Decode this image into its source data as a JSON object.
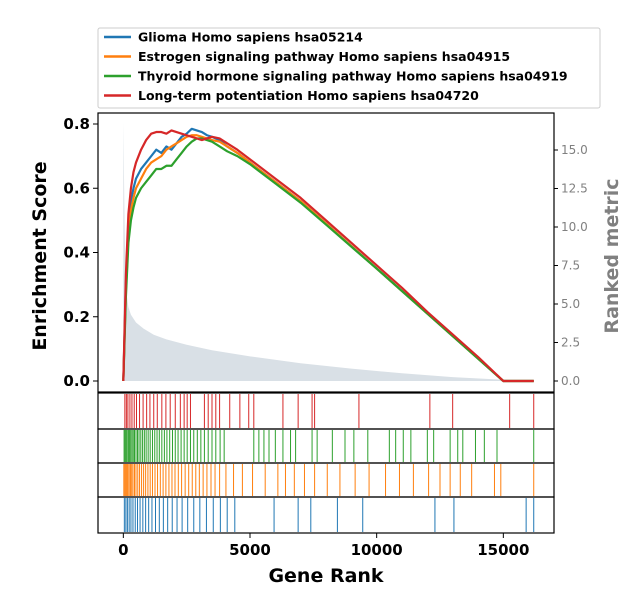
{
  "chart_data": {
    "type": "line",
    "xlabel": "Gene Rank",
    "ylabel": "Enrichment Score",
    "ylabel_right": "Ranked metric",
    "xlim": [
      -1000,
      17000
    ],
    "ylim": [
      0,
      0.82
    ],
    "ylim_right": [
      0,
      17
    ],
    "x_ticks": [
      0,
      5000,
      10000,
      15000
    ],
    "x_tick_labels": [
      "0",
      "5000",
      "10000",
      "15000"
    ],
    "y_ticks": [
      0.0,
      0.2,
      0.4,
      0.6,
      0.8
    ],
    "y_tick_labels": [
      "0.0",
      "0.2",
      "0.4",
      "0.6",
      "0.8"
    ],
    "y_right_ticks": [
      0.0,
      2.5,
      5.0,
      7.5,
      10.0,
      12.5,
      15.0
    ],
    "y_right_tick_labels": [
      "0.0",
      "2.5",
      "5.0",
      "7.5",
      "10.0",
      "12.5",
      "15.0"
    ],
    "legend_position": "top",
    "grid": false,
    "series": [
      {
        "name": "Glioma Homo sapiens hsa05214",
        "color": "#1f77b4",
        "x": [
          0,
          100,
          200,
          300,
          400,
          500,
          700,
          900,
          1100,
          1300,
          1500,
          1700,
          1900,
          2100,
          2300,
          2500,
          2700,
          2900,
          3100,
          3300,
          3500,
          3800,
          4100,
          4500,
          5000,
          6000,
          7000,
          8000,
          9000,
          10000,
          11000,
          12000,
          13000,
          14000,
          15000,
          16200
        ],
        "y": [
          0,
          0.3,
          0.48,
          0.56,
          0.6,
          0.63,
          0.66,
          0.68,
          0.7,
          0.72,
          0.71,
          0.73,
          0.72,
          0.74,
          0.76,
          0.77,
          0.785,
          0.78,
          0.775,
          0.765,
          0.76,
          0.75,
          0.73,
          0.71,
          0.68,
          0.62,
          0.56,
          0.49,
          0.42,
          0.35,
          0.28,
          0.21,
          0.14,
          0.07,
          0.0,
          0.0
        ]
      },
      {
        "name": "Estrogen signaling pathway Homo sapiens hsa04915",
        "color": "#ff7f0e",
        "x": [
          0,
          100,
          200,
          300,
          400,
          500,
          700,
          900,
          1100,
          1300,
          1500,
          1700,
          1900,
          2100,
          2300,
          2500,
          2700,
          2900,
          3100,
          3300,
          3500,
          3800,
          4100,
          4500,
          5000,
          6000,
          7000,
          8000,
          9000,
          10000,
          11000,
          12000,
          13000,
          14000,
          15000,
          16200
        ],
        "y": [
          0,
          0.28,
          0.45,
          0.53,
          0.57,
          0.6,
          0.63,
          0.66,
          0.68,
          0.69,
          0.7,
          0.72,
          0.73,
          0.74,
          0.75,
          0.76,
          0.765,
          0.765,
          0.76,
          0.755,
          0.75,
          0.745,
          0.73,
          0.71,
          0.68,
          0.62,
          0.56,
          0.49,
          0.42,
          0.35,
          0.28,
          0.21,
          0.14,
          0.07,
          0.0,
          0.0
        ]
      },
      {
        "name": "Thyroid hormone signaling pathway Homo sapiens hsa04919",
        "color": "#2ca02c",
        "x": [
          0,
          100,
          200,
          300,
          400,
          500,
          700,
          900,
          1100,
          1300,
          1500,
          1700,
          1900,
          2100,
          2300,
          2500,
          2700,
          2900,
          3100,
          3300,
          3500,
          3800,
          4100,
          4500,
          5000,
          6000,
          7000,
          8000,
          9000,
          10000,
          11000,
          12000,
          13000,
          14000,
          15000,
          16200
        ],
        "y": [
          0,
          0.26,
          0.43,
          0.5,
          0.54,
          0.57,
          0.6,
          0.62,
          0.64,
          0.66,
          0.66,
          0.67,
          0.67,
          0.69,
          0.71,
          0.73,
          0.745,
          0.755,
          0.755,
          0.75,
          0.745,
          0.73,
          0.715,
          0.7,
          0.675,
          0.615,
          0.555,
          0.487,
          0.418,
          0.35,
          0.28,
          0.21,
          0.14,
          0.07,
          0.0,
          0.0
        ]
      },
      {
        "name": "Long-term potentiation Homo sapiens hsa04720",
        "color": "#d62728",
        "x": [
          0,
          100,
          200,
          300,
          400,
          500,
          700,
          900,
          1100,
          1300,
          1500,
          1700,
          1900,
          2100,
          2300,
          2500,
          2700,
          2900,
          3100,
          3300,
          3500,
          3800,
          4100,
          4500,
          5000,
          6000,
          7000,
          8000,
          9000,
          10000,
          11000,
          12000,
          13000,
          14000,
          15000,
          16200
        ],
        "y": [
          0,
          0.33,
          0.52,
          0.6,
          0.65,
          0.68,
          0.72,
          0.75,
          0.77,
          0.775,
          0.775,
          0.77,
          0.78,
          0.775,
          0.77,
          0.765,
          0.76,
          0.755,
          0.75,
          0.755,
          0.76,
          0.755,
          0.74,
          0.72,
          0.69,
          0.63,
          0.57,
          0.5,
          0.43,
          0.36,
          0.29,
          0.215,
          0.145,
          0.075,
          0.0,
          0.0
        ]
      }
    ],
    "ranked_metric": {
      "color": "#d9e0e6",
      "x": [
        0,
        50,
        100,
        200,
        300,
        500,
        800,
        1200,
        1700,
        2500,
        3500,
        5000,
        7000,
        9000,
        11000,
        13000,
        15000,
        16200
      ],
      "y": [
        16.8,
        10.0,
        6.0,
        4.8,
        4.3,
        3.8,
        3.4,
        3.0,
        2.7,
        2.35,
        2.0,
        1.6,
        1.15,
        0.8,
        0.5,
        0.25,
        0.08,
        0.0
      ]
    },
    "hit_tracks": [
      {
        "series": "Long-term potentiation Homo sapiens hsa04720",
        "color": "#d62728",
        "hits": [
          60,
          120,
          180,
          260,
          340,
          430,
          520,
          640,
          780,
          920,
          1050,
          1200,
          1340,
          1520,
          1680,
          1850,
          2050,
          2250,
          2400,
          2520,
          2650,
          3200,
          3350,
          3500,
          3650,
          3800,
          4200,
          4600,
          4950,
          5150,
          6300,
          6900,
          7450,
          7550,
          9300,
          12100,
          13000,
          15250,
          16200
        ]
      },
      {
        "series": "Thyroid hormone signaling pathway Homo sapiens hsa04919",
        "color": "#2ca02c",
        "hits": [
          30,
          70,
          110,
          150,
          200,
          240,
          290,
          340,
          390,
          440,
          500,
          560,
          620,
          690,
          760,
          830,
          900,
          980,
          1060,
          1150,
          1240,
          1330,
          1420,
          1520,
          1620,
          1720,
          1830,
          1940,
          2050,
          2160,
          2280,
          2400,
          2520,
          2650,
          2780,
          2920,
          3060,
          3200,
          3350,
          3500,
          3650,
          3820,
          3980,
          5150,
          5350,
          5550,
          5750,
          6000,
          6300,
          6600,
          6800,
          7450,
          7650,
          8250,
          8750,
          9100,
          9650,
          10500,
          10750,
          11050,
          11350,
          12000,
          12250,
          12900,
          13200,
          13400,
          13900,
          14250,
          14750,
          16200
        ]
      },
      {
        "series": "Estrogen signaling pathway Homo sapiens hsa04915",
        "color": "#ff7f0e",
        "hits": [
          20,
          60,
          100,
          140,
          180,
          230,
          280,
          330,
          380,
          440,
          500,
          570,
          640,
          720,
          800,
          880,
          970,
          1060,
          1150,
          1250,
          1350,
          1460,
          1570,
          1680,
          1800,
          1920,
          2040,
          2170,
          2300,
          2440,
          2580,
          2720,
          2860,
          3000,
          3150,
          3300,
          3460,
          3620,
          3800,
          4050,
          4350,
          4700,
          5100,
          5600,
          6100,
          6400,
          6750,
          7150,
          7550,
          8050,
          8550,
          9150,
          9700,
          10350,
          10900,
          11450,
          12050,
          12500,
          12900,
          13300,
          13750,
          14650,
          14900,
          16200
        ]
      },
      {
        "series": "Glioma Homo sapiens hsa05214",
        "color": "#1f77b4",
        "hits": [
          40,
          100,
          160,
          230,
          300,
          380,
          470,
          560,
          660,
          770,
          880,
          1000,
          1130,
          1270,
          1420,
          1580,
          1750,
          1930,
          2120,
          2320,
          2540,
          2780,
          3020,
          3280,
          3550,
          3830,
          4100,
          4400,
          5950,
          6900,
          7400,
          8450,
          9450,
          12300,
          13050,
          15900,
          16200
        ]
      }
    ]
  }
}
